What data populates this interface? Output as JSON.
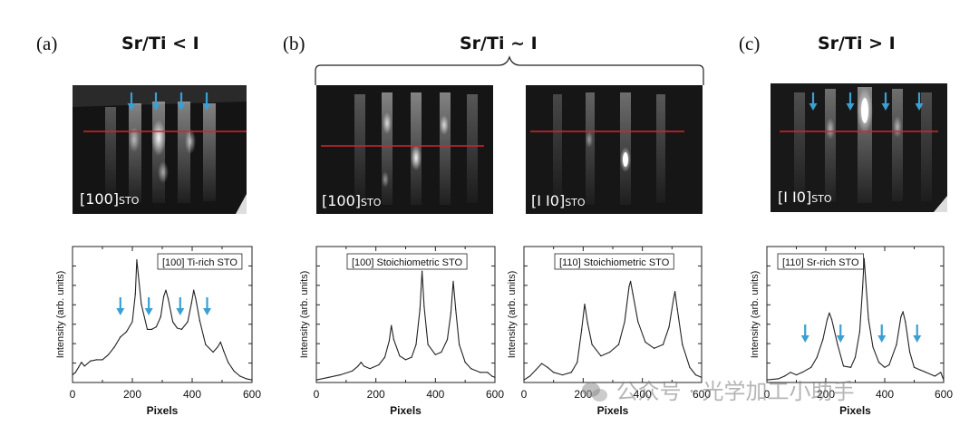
{
  "panels": [
    {
      "letter": "(a)",
      "title": "Sr/Ti < I"
    },
    {
      "letter": "(b)",
      "title": "Sr/Ti ~ I"
    },
    {
      "letter": "(c)",
      "title": "Sr/Ti > I"
    }
  ],
  "rheed_images": [
    {
      "label_main": "[100]",
      "label_sub": "STO"
    },
    {
      "label_main": "[100]",
      "label_sub": "STO"
    },
    {
      "label_main": "[I I0]",
      "label_sub": "STO"
    },
    {
      "label_main": "[I I0]",
      "label_sub": "STO"
    }
  ],
  "watermark": "公众号 · 光学加工小助手",
  "colors": {
    "arrow": "#3a9fd2",
    "line": "#d8232a",
    "curve": "#222222"
  },
  "chart_data": [
    {
      "type": "line",
      "title": "[100] Ti-rich STO",
      "xlabel": "Pixels",
      "ylabel": "Intensity (arb. units)",
      "xlim": [
        0,
        600
      ],
      "ylim": [
        0,
        1
      ],
      "xticks": [
        0,
        200,
        400,
        600
      ],
      "x": [
        0,
        10,
        20,
        30,
        40,
        60,
        80,
        100,
        120,
        140,
        160,
        180,
        200,
        210,
        215,
        220,
        230,
        250,
        265,
        280,
        295,
        305,
        312,
        320,
        335,
        350,
        365,
        385,
        398,
        405,
        412,
        425,
        445,
        470,
        485,
        495,
        505,
        520,
        540,
        560,
        580,
        600
      ],
      "y": [
        0.06,
        0.08,
        0.12,
        0.16,
        0.13,
        0.17,
        0.18,
        0.18,
        0.22,
        0.28,
        0.36,
        0.4,
        0.48,
        0.7,
        0.97,
        0.85,
        0.62,
        0.42,
        0.42,
        0.44,
        0.52,
        0.68,
        0.73,
        0.66,
        0.48,
        0.43,
        0.42,
        0.48,
        0.63,
        0.73,
        0.66,
        0.49,
        0.3,
        0.24,
        0.28,
        0.32,
        0.25,
        0.16,
        0.09,
        0.05,
        0.03,
        0.02
      ],
      "arrows_x": [
        160,
        255,
        360,
        450
      ]
    },
    {
      "type": "line",
      "title": "[100] Stoichiometric STO",
      "xlabel": "Pixels",
      "ylabel": "Intensity (arb. units)",
      "xlim": [
        0,
        600
      ],
      "ylim": [
        0,
        1
      ],
      "xticks": [
        0,
        200,
        400,
        600
      ],
      "x": [
        0,
        40,
        80,
        120,
        140,
        150,
        160,
        180,
        210,
        230,
        245,
        252,
        260,
        280,
        300,
        320,
        335,
        348,
        355,
        362,
        375,
        400,
        420,
        440,
        452,
        460,
        468,
        480,
        500,
        520,
        550,
        575,
        590,
        600
      ],
      "y": [
        0.02,
        0.04,
        0.06,
        0.09,
        0.13,
        0.16,
        0.13,
        0.11,
        0.14,
        0.2,
        0.33,
        0.45,
        0.34,
        0.21,
        0.18,
        0.2,
        0.3,
        0.58,
        0.88,
        0.6,
        0.3,
        0.22,
        0.24,
        0.34,
        0.55,
        0.8,
        0.58,
        0.3,
        0.16,
        0.11,
        0.08,
        0.08,
        0.05,
        0.04
      ]
    },
    {
      "type": "line",
      "title": "[110] Stoichiometric STO",
      "xlabel": "Pixels",
      "ylabel": "Intensity (arb. units)",
      "xlim": [
        0,
        600
      ],
      "ylim": [
        0,
        1
      ],
      "xticks": [
        0,
        200,
        400,
        600
      ],
      "x": [
        0,
        20,
        40,
        60,
        80,
        100,
        130,
        160,
        180,
        195,
        205,
        215,
        230,
        260,
        290,
        320,
        340,
        355,
        360,
        368,
        385,
        410,
        440,
        470,
        490,
        505,
        510,
        518,
        535,
        560,
        580,
        600
      ],
      "y": [
        0.02,
        0.05,
        0.1,
        0.15,
        0.12,
        0.08,
        0.06,
        0.08,
        0.16,
        0.42,
        0.62,
        0.47,
        0.3,
        0.21,
        0.24,
        0.3,
        0.48,
        0.76,
        0.8,
        0.7,
        0.48,
        0.32,
        0.27,
        0.3,
        0.44,
        0.66,
        0.72,
        0.58,
        0.3,
        0.12,
        0.06,
        0.04
      ]
    },
    {
      "type": "line",
      "title": "[110] Sr-rich STO",
      "xlabel": "Pixels",
      "ylabel": "Intensity (arb. units)",
      "xlim": [
        0,
        600
      ],
      "ylim": [
        0,
        1
      ],
      "xticks": [
        0,
        200,
        400,
        600
      ],
      "x": [
        0,
        40,
        60,
        80,
        100,
        120,
        150,
        170,
        190,
        205,
        212,
        220,
        240,
        260,
        285,
        300,
        315,
        325,
        330,
        335,
        345,
        360,
        380,
        400,
        415,
        440,
        455,
        462,
        470,
        485,
        500,
        520,
        540,
        570,
        590,
        600
      ],
      "y": [
        0.02,
        0.03,
        0.05,
        0.08,
        0.06,
        0.08,
        0.12,
        0.2,
        0.34,
        0.5,
        0.55,
        0.5,
        0.3,
        0.13,
        0.12,
        0.2,
        0.4,
        0.75,
        0.98,
        0.82,
        0.5,
        0.28,
        0.16,
        0.12,
        0.14,
        0.3,
        0.52,
        0.56,
        0.48,
        0.24,
        0.12,
        0.1,
        0.08,
        0.05,
        0.08,
        0.02
      ],
      "arrows_x": [
        130,
        250,
        390,
        510
      ]
    }
  ]
}
